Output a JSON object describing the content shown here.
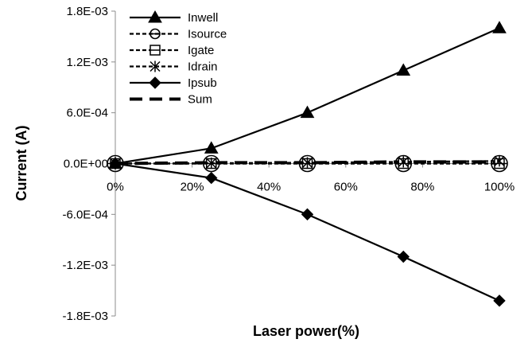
{
  "chart_data": {
    "type": "line",
    "title": "",
    "xlabel": "Laser power(%)",
    "ylabel": "Current (A)",
    "x": [
      0,
      25,
      50,
      75,
      100
    ],
    "x_tick_labels": [
      "0%",
      "20%",
      "40%",
      "60%",
      "80%",
      "100%"
    ],
    "x_ticks": [
      0,
      20,
      40,
      60,
      80,
      100
    ],
    "xlim": [
      0,
      100
    ],
    "y_tick_labels": [
      "1.8E-03",
      "1.2E-03",
      "6.0E-04",
      "0.0E+00",
      "-6.0E-04",
      "-1.2E-03",
      "-1.8E-03"
    ],
    "y_ticks": [
      0.0018,
      0.0012,
      0.0006,
      0,
      -0.0006,
      -0.0012,
      -0.0018
    ],
    "ylim": [
      -0.0018,
      0.0018
    ],
    "grid": false,
    "legend_position": "top-left",
    "series": [
      {
        "name": "Inwell",
        "values": [
          0,
          0.00018,
          0.0006,
          0.0011,
          0.0016
        ],
        "marker": "triangle",
        "line": "solid",
        "color": "#000000"
      },
      {
        "name": "Isource",
        "values": [
          0,
          0,
          0,
          0,
          0
        ],
        "marker": "circle-cross",
        "line": "dashed",
        "color": "#000000"
      },
      {
        "name": "Igate",
        "values": [
          0,
          0,
          0,
          0,
          0
        ],
        "marker": "square-line",
        "line": "dashed",
        "color": "#000000"
      },
      {
        "name": "Idrain",
        "values": [
          0,
          5e-06,
          1e-05,
          2e-05,
          3e-05
        ],
        "marker": "asterisk",
        "line": "dashed",
        "color": "#000000"
      },
      {
        "name": "Ipsub",
        "values": [
          0,
          -0.00017,
          -0.0006,
          -0.0011,
          -0.00162
        ],
        "marker": "diamond",
        "line": "solid",
        "color": "#000000"
      },
      {
        "name": "Sum",
        "values": [
          0,
          1e-05,
          1e-05,
          2e-05,
          2e-05
        ],
        "marker": "none",
        "line": "long-dash",
        "color": "#000000"
      }
    ]
  }
}
